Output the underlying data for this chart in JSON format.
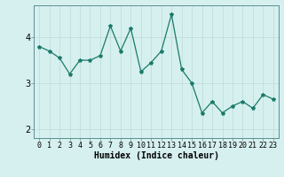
{
  "x": [
    0,
    1,
    2,
    3,
    4,
    5,
    6,
    7,
    8,
    9,
    10,
    11,
    12,
    13,
    14,
    15,
    16,
    17,
    18,
    19,
    20,
    21,
    22,
    23
  ],
  "y": [
    3.8,
    3.7,
    3.55,
    3.2,
    3.5,
    3.5,
    3.6,
    4.25,
    3.7,
    4.2,
    3.25,
    3.45,
    3.7,
    4.5,
    3.3,
    3.0,
    2.35,
    2.6,
    2.35,
    2.5,
    2.6,
    2.45,
    2.75,
    2.65
  ],
  "line_color": "#1a7a6a",
  "marker": "*",
  "marker_size": 3,
  "bg_color": "#d6f0ef",
  "grid_color": "#c0dedd",
  "xlabel": "Humidex (Indice chaleur)",
  "xlabel_fontsize": 7,
  "ylabel_ticks": [
    2,
    3,
    4
  ],
  "xlim": [
    -0.5,
    23.5
  ],
  "ylim": [
    1.8,
    4.7
  ],
  "tick_fontsize": 6,
  "ytick_fontsize": 7
}
